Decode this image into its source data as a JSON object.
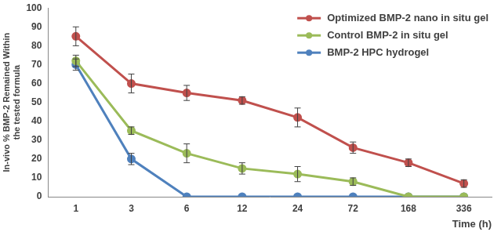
{
  "chart_data": {
    "type": "line",
    "x_label": "Time (h)",
    "y_label": [
      "In-vivo % BMP-2 Remained Within",
      "the tested formula"
    ],
    "categories": [
      "1",
      "3",
      "6",
      "12",
      "24",
      "72",
      "168",
      "336"
    ],
    "series": [
      {
        "name": "Optimized BMP-2 nano in situ gel",
        "color": "#c0504d",
        "marker": "circle",
        "values": [
          85,
          60,
          55,
          51,
          42,
          26,
          18,
          7
        ],
        "errors": [
          5,
          5,
          4,
          2,
          5,
          3,
          2,
          2
        ]
      },
      {
        "name": "Control BMP-2 in situ gel",
        "color": "#9bbb59",
        "marker": "circle",
        "values": [
          72,
          35,
          23,
          15,
          12,
          8,
          0,
          0
        ],
        "errors": [
          3,
          2,
          5,
          3,
          4,
          2,
          0,
          0
        ]
      },
      {
        "name": "BMP-2 HPC hydrogel",
        "color": "#4f81bd",
        "marker": "circle",
        "values": [
          70,
          20,
          0,
          0,
          0,
          0,
          0,
          0
        ],
        "errors": [
          3,
          3,
          0,
          0,
          0,
          0,
          0,
          0
        ]
      }
    ],
    "ylim": [
      0,
      100
    ],
    "yticks": [
      0,
      10,
      20,
      30,
      40,
      50,
      60,
      70,
      80,
      90,
      100
    ],
    "grid": false,
    "legend": "top-right"
  }
}
